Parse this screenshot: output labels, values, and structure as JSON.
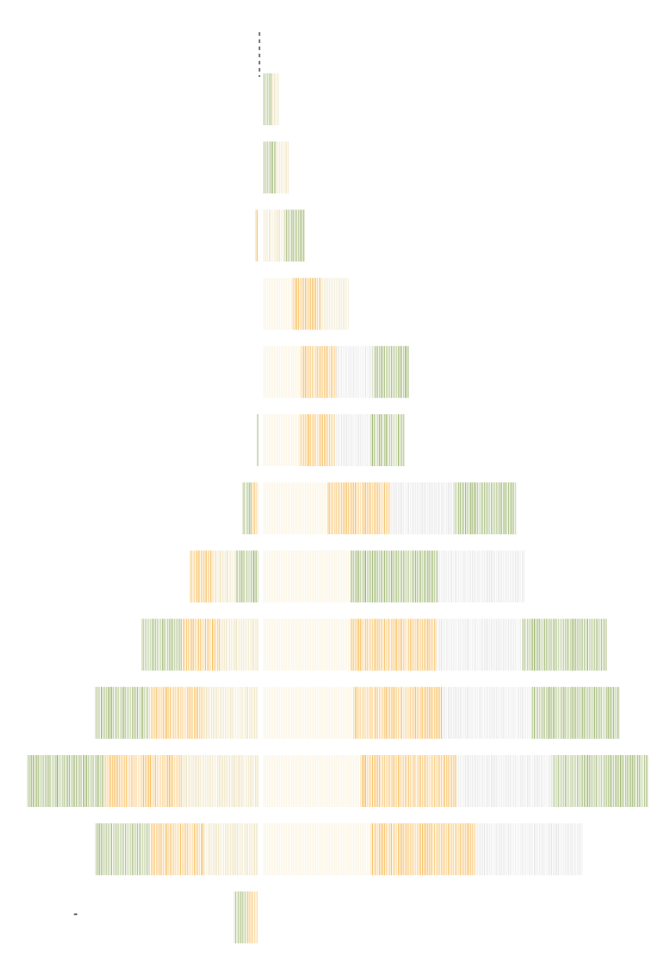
{
  "chart_data": {
    "type": "bar",
    "orientation": "horizontal",
    "diverging": true,
    "title": "",
    "xlabel": "",
    "ylabel": "",
    "grid": false,
    "legend": "none",
    "colors": {
      "orange": "#F5A623",
      "green": "#7A9A3A",
      "tan": "#E8D9A8",
      "light": "#FBF3DC",
      "gray": "#DDDDDD",
      "axis": "#000000"
    },
    "annotation": "-",
    "rows": [
      {
        "left": 0,
        "right": 17,
        "right_mix": [
          "green",
          "tan"
        ]
      },
      {
        "left": 0,
        "right": 28,
        "right_mix": [
          "green",
          "tan"
        ]
      },
      {
        "left": 4,
        "right": 45,
        "left_mix": [
          "orange"
        ],
        "right_mix": [
          "tan",
          "green"
        ]
      },
      {
        "left": 0,
        "right": 95,
        "right_mix": [
          "light",
          "orange",
          "tan"
        ]
      },
      {
        "left": 0,
        "right": 162,
        "right_mix": [
          "light",
          "orange",
          "gray",
          "green"
        ]
      },
      {
        "left": 2,
        "right": 158,
        "left_mix": [
          "green"
        ],
        "right_mix": [
          "light",
          "orange",
          "gray",
          "green"
        ]
      },
      {
        "left": 18,
        "right": 283,
        "left_mix": [
          "green",
          "orange"
        ],
        "right_mix": [
          "light",
          "orange",
          "gray",
          "green"
        ]
      },
      {
        "left": 77,
        "right": 292,
        "left_mix": [
          "orange",
          "tan",
          "green"
        ],
        "right_mix": [
          "light",
          "green",
          "gray"
        ]
      },
      {
        "left": 131,
        "right": 384,
        "left_mix": [
          "green",
          "orange",
          "tan"
        ],
        "right_mix": [
          "light",
          "orange",
          "gray",
          "green"
        ]
      },
      {
        "left": 183,
        "right": 398,
        "left_mix": [
          "green",
          "orange",
          "tan"
        ],
        "right_mix": [
          "light",
          "orange",
          "gray",
          "green"
        ]
      },
      {
        "left": 259,
        "right": 430,
        "left_mix": [
          "green",
          "orange",
          "tan"
        ],
        "right_mix": [
          "light",
          "orange",
          "gray",
          "green"
        ]
      },
      {
        "left": 183,
        "right": 356,
        "left_mix": [
          "green",
          "orange",
          "tan"
        ],
        "right_mix": [
          "light",
          "orange",
          "gray"
        ]
      },
      {
        "left": 28,
        "right": 0,
        "left_mix": [
          "green",
          "orange"
        ],
        "right_mix": []
      }
    ]
  }
}
